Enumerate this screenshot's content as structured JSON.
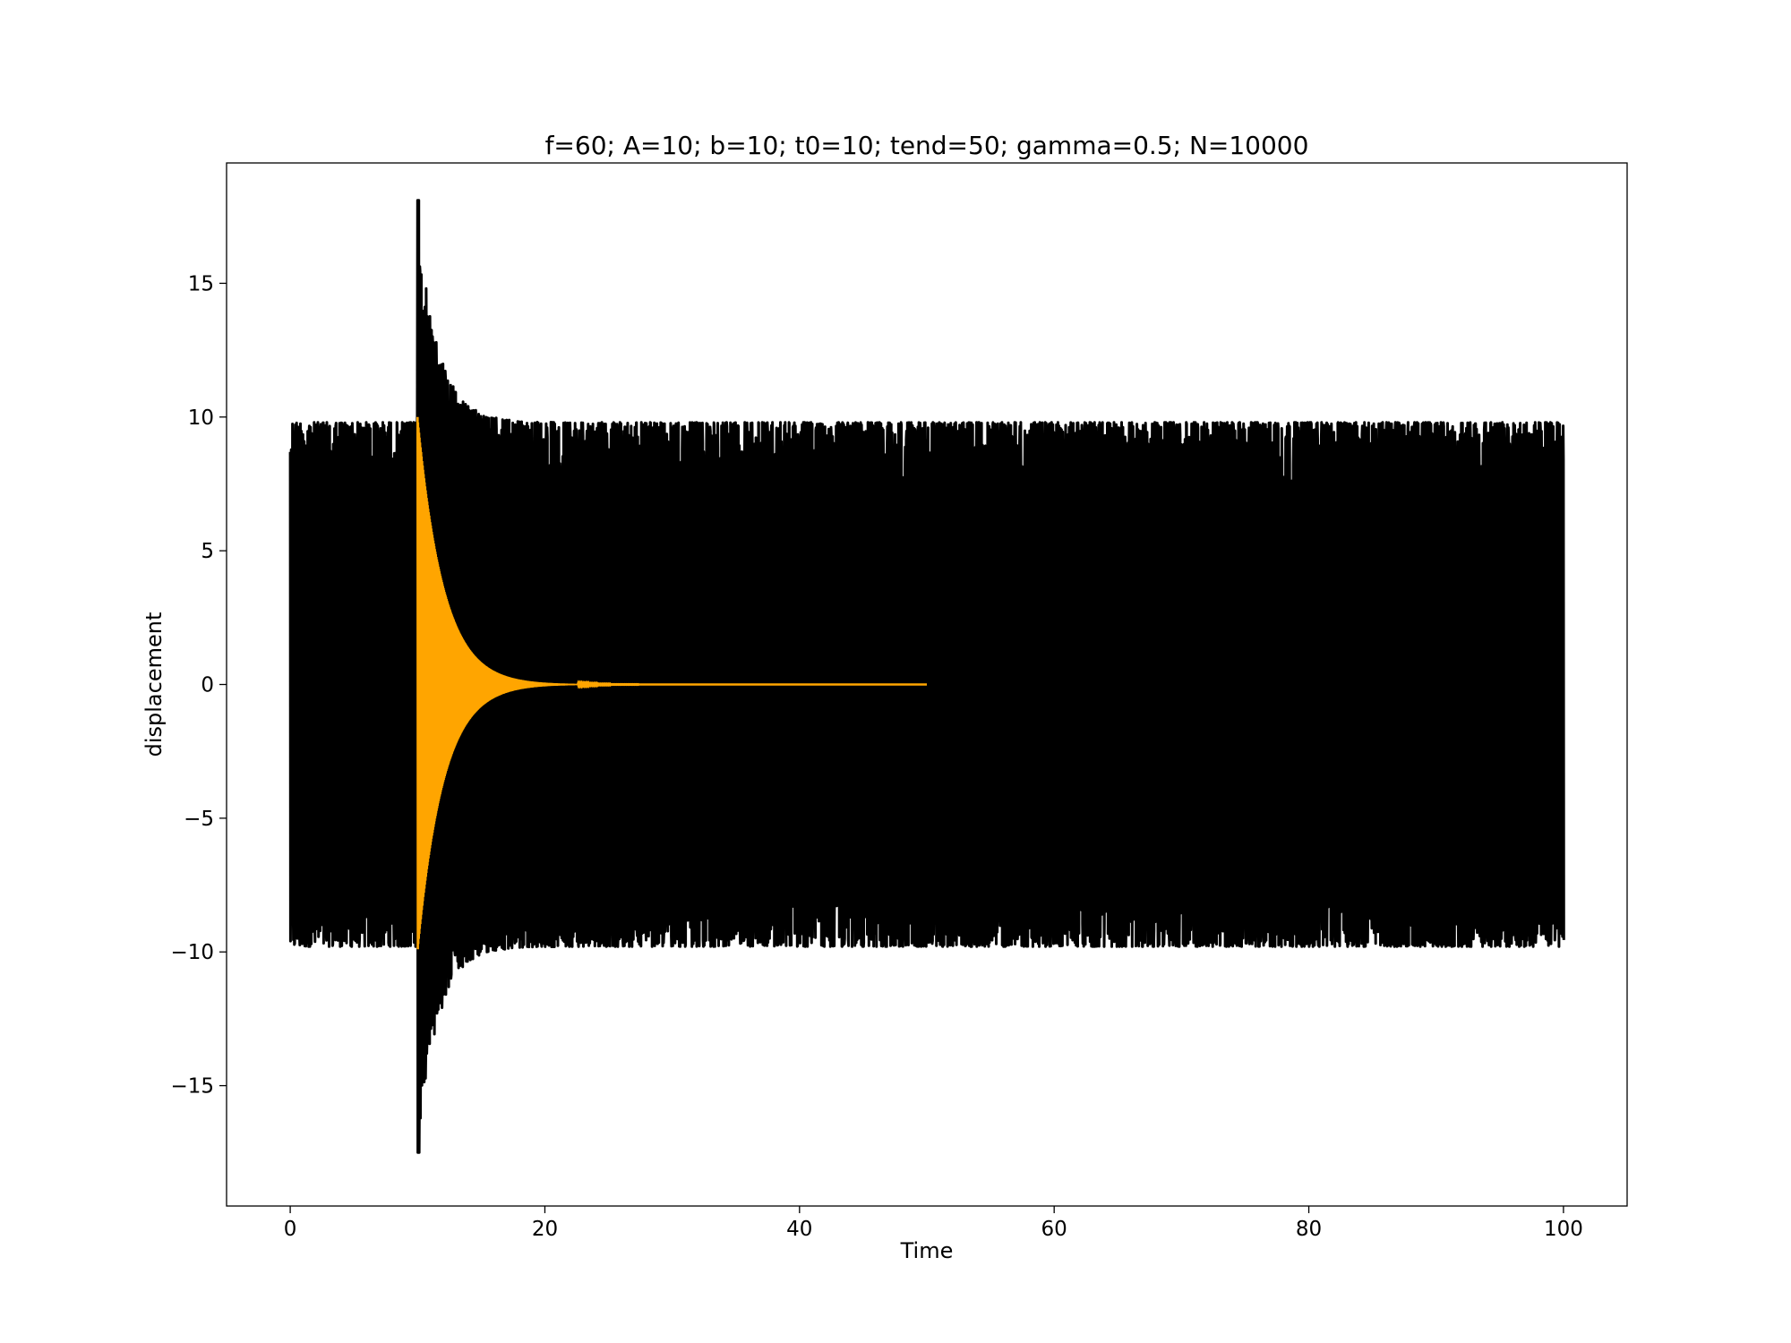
{
  "chart_data": {
    "type": "line",
    "title": "f=60; A=10; b=10; t0=10; tend=50; gamma=0.5; N=10000",
    "xlabel": "Time",
    "ylabel": "displacement",
    "xlim": [
      -5,
      105
    ],
    "ylim": [
      -19.5,
      19.5
    ],
    "xticks": [
      0,
      20,
      40,
      60,
      80,
      100
    ],
    "xtick_labels": [
      "0",
      "20",
      "40",
      "60",
      "80",
      "100"
    ],
    "yticks": [
      -15,
      -10,
      -5,
      0,
      5,
      10,
      15
    ],
    "ytick_labels": [
      "−15",
      "−10",
      "−5",
      "0",
      "5",
      "10",
      "15"
    ],
    "grid": false,
    "legend": "none",
    "series": [
      {
        "color": "#000000",
        "description_points": "dense oscillation between -10 and 10 over t=0..100, with a burst up to about 18 and down to about -17.5 starting at t=10 and decaying back to +/-10 by t≈15",
        "t_start": 0,
        "t_end": 100,
        "amplitude": 10,
        "burst_t0": 10,
        "burst_peak_max": 18.1,
        "burst_peak_min": -17.5
      },
      {
        "color": "#ffa500",
        "t_start": 10,
        "t_end": 50,
        "amplitude": 10,
        "decay_rate": 0.5
      }
    ]
  }
}
